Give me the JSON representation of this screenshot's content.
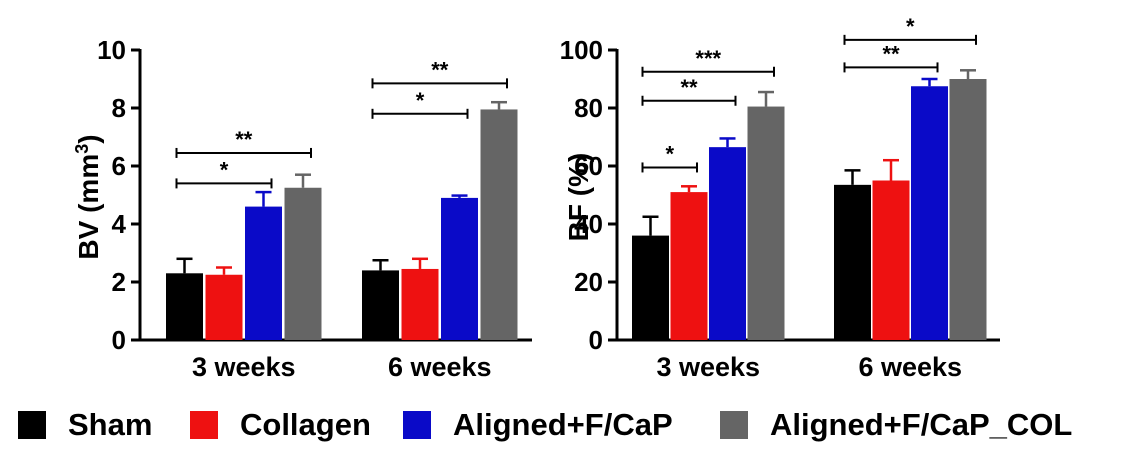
{
  "colors": {
    "sham": "#000000",
    "collagen": "#ee1111",
    "aligned": "#0a0ac8",
    "aligned_col": "#656565"
  },
  "legend": [
    {
      "label": "Sham",
      "color": "#000000"
    },
    {
      "label": "Collagen",
      "color": "#ee1111"
    },
    {
      "label": "Aligned+F/CaP",
      "color": "#0a0ac8"
    },
    {
      "label": "Aligned+F/CaP_COL",
      "color": "#656565"
    }
  ],
  "chart_data": [
    {
      "type": "bar",
      "ylabel": "BV (mm3)",
      "ylabel_main": "BV (mm",
      "ylabel_sup": "3",
      "ylabel_close": ")",
      "ylim": [
        0,
        10
      ],
      "yticks": [
        "0",
        "2",
        "4",
        "6",
        "8",
        "10"
      ],
      "categories": [
        "3 weeks",
        "6 weeks"
      ],
      "series": [
        {
          "name": "Sham",
          "values": [
            2.3,
            2.4
          ],
          "errors": [
            0.5,
            0.35
          ]
        },
        {
          "name": "Collagen",
          "values": [
            2.25,
            2.45
          ],
          "errors": [
            0.25,
            0.35
          ]
        },
        {
          "name": "Aligned+F/CaP",
          "values": [
            4.6,
            4.9
          ],
          "errors": [
            0.5,
            0.08
          ]
        },
        {
          "name": "Aligned+F/CaP_COL",
          "values": [
            5.25,
            7.95
          ],
          "errors": [
            0.45,
            0.25
          ]
        }
      ],
      "annotations": [
        {
          "group": 0,
          "from": 0,
          "to": 2,
          "y": 5.4,
          "label": "*"
        },
        {
          "group": 0,
          "from": 0,
          "to": 3,
          "y": 6.45,
          "label": "**"
        },
        {
          "group": 1,
          "from": 0,
          "to": 2,
          "y": 7.8,
          "label": "*"
        },
        {
          "group": 1,
          "from": 0,
          "to": 3,
          "y": 8.85,
          "label": "**"
        }
      ]
    },
    {
      "type": "bar",
      "ylabel": "BF (%)",
      "ylabel_main": "BF (%)",
      "ylabel_sup": "",
      "ylabel_close": "",
      "ylim": [
        0,
        100
      ],
      "yticks": [
        "0",
        "20",
        "40",
        "60",
        "80",
        "100"
      ],
      "categories": [
        "3 weeks",
        "6 weeks"
      ],
      "series": [
        {
          "name": "Sham",
          "values": [
            36,
            53.5
          ],
          "errors": [
            6.5,
            5
          ]
        },
        {
          "name": "Collagen",
          "values": [
            51,
            55
          ],
          "errors": [
            2,
            7
          ]
        },
        {
          "name": "Aligned+F/CaP",
          "values": [
            66.5,
            87.5
          ],
          "errors": [
            3,
            2.5
          ]
        },
        {
          "name": "Aligned+F/CaP_COL",
          "values": [
            80.5,
            90
          ],
          "errors": [
            5,
            3
          ]
        }
      ],
      "annotations": [
        {
          "group": 0,
          "from": 0,
          "to": 1,
          "y": 59.5,
          "label": "*"
        },
        {
          "group": 0,
          "from": 0,
          "to": 2,
          "y": 82.5,
          "label": "**"
        },
        {
          "group": 0,
          "from": 0,
          "to": 3,
          "y": 92.5,
          "label": "***"
        },
        {
          "group": 1,
          "from": 0,
          "to": 2,
          "y": 94,
          "label": "**"
        },
        {
          "group": 1,
          "from": 0,
          "to": 3,
          "y": 103.5,
          "label": "*"
        }
      ]
    }
  ]
}
